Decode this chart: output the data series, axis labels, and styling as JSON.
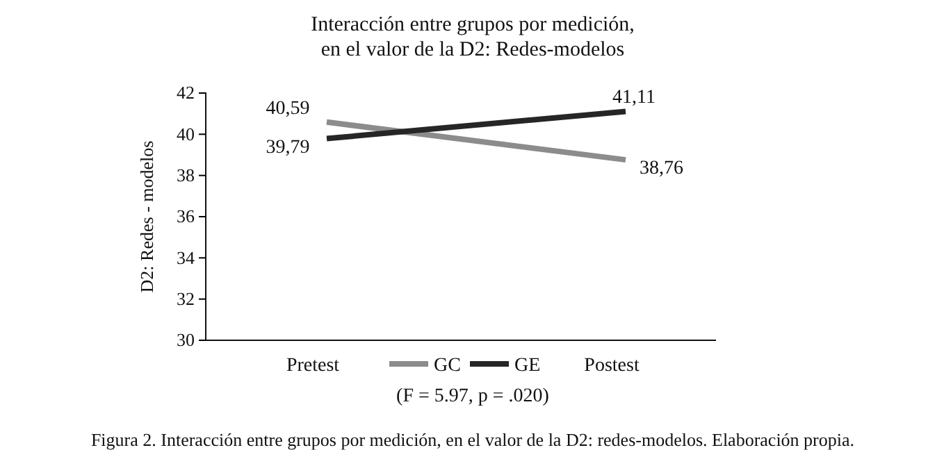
{
  "chart_data": {
    "type": "line",
    "title": "Interacción entre grupos por medición,\nen el valor de la D2: Redes-modelos",
    "ylabel": "D2: Redes - modelos",
    "categories": [
      "Pretest",
      "Postest"
    ],
    "ylim": [
      30,
      42
    ],
    "yticks": [
      30,
      32,
      34,
      36,
      38,
      40,
      42
    ],
    "grid": false,
    "legend": "bottom",
    "marker": "none",
    "line_style": "solid",
    "series": [
      {
        "name": "GC",
        "color": "#8c8c8c",
        "values": [
          40.59,
          38.76
        ],
        "value_labels": [
          "40,59",
          "38,76"
        ]
      },
      {
        "name": "GE",
        "color": "#262626",
        "values": [
          39.79,
          41.11
        ],
        "value_labels": [
          "39,79",
          "41,11"
        ]
      }
    ],
    "annotations": [
      "(F = 5.97, p = .020)",
      "Figura 2. Interacción entre grupos por medición, en el valor de la D2: redes-modelos. Elaboración propia."
    ]
  }
}
